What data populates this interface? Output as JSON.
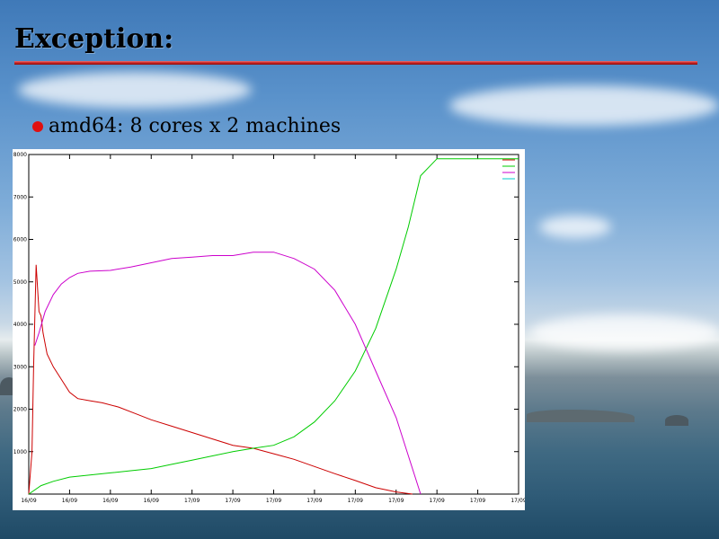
{
  "slide": {
    "title": "Exception:",
    "bullets": [
      {
        "text": "amd64: 8 cores x 2 machines"
      }
    ]
  },
  "colors": {
    "title_rule": "#c62020",
    "bullet": "#e01010",
    "series_red": "#cc0000",
    "series_green": "#00cc00",
    "series_magenta": "#cc00cc",
    "series_cyan": "#00cccc"
  },
  "chart_data": {
    "type": "line",
    "title": "",
    "xlabel": "",
    "ylabel": "",
    "xlim": [
      0,
      12
    ],
    "ylim": [
      0,
      8
    ],
    "grid": false,
    "legend": "top-right",
    "y_ticks": [
      "",
      "1000",
      "2000",
      "3000",
      "4000",
      "5000",
      "6000",
      "7000",
      "8000"
    ],
    "x_ticks": [
      "16/09",
      "16/09",
      "16/09",
      "16/09",
      "17/09",
      "17/09",
      "17/09",
      "17/09",
      "17/09",
      "17/09",
      "17/09",
      "17/09",
      "17/09"
    ],
    "series": [
      {
        "name": "",
        "color": "#cc0000",
        "x": [
          0.0,
          0.08,
          0.12,
          0.18,
          0.25,
          0.3,
          0.35,
          0.45,
          0.6,
          0.8,
          1.0,
          1.2,
          1.5,
          1.8,
          2.2,
          2.6,
          3.0,
          3.5,
          4.0,
          4.5,
          5.0,
          5.5,
          6.0,
          6.5,
          7.0,
          7.5,
          8.0,
          8.5,
          9.0,
          9.4
        ],
        "y": [
          0.0,
          1.0,
          3.0,
          5.4,
          4.3,
          4.2,
          3.8,
          3.3,
          3.0,
          2.7,
          2.4,
          2.25,
          2.2,
          2.15,
          2.05,
          1.9,
          1.75,
          1.6,
          1.45,
          1.3,
          1.15,
          1.08,
          0.95,
          0.82,
          0.65,
          0.48,
          0.32,
          0.15,
          0.05,
          0.0
        ]
      },
      {
        "name": "",
        "color": "#00cc00",
        "x": [
          0.0,
          0.3,
          0.6,
          1.0,
          1.5,
          2.0,
          2.5,
          3.0,
          3.5,
          4.0,
          4.5,
          5.0,
          5.5,
          6.0,
          6.5,
          7.0,
          7.5,
          8.0,
          8.5,
          9.0,
          9.3,
          9.6,
          10.0,
          12.0
        ],
        "y": [
          0.0,
          0.2,
          0.3,
          0.4,
          0.45,
          0.5,
          0.55,
          0.6,
          0.7,
          0.8,
          0.9,
          1.0,
          1.08,
          1.15,
          1.35,
          1.7,
          2.2,
          2.9,
          3.9,
          5.3,
          6.3,
          7.5,
          7.9,
          7.9
        ]
      },
      {
        "name": "",
        "color": "#cc00cc",
        "x": [
          0.15,
          0.25,
          0.4,
          0.6,
          0.8,
          1.0,
          1.2,
          1.5,
          2.0,
          2.5,
          3.0,
          3.5,
          4.0,
          4.5,
          5.0,
          5.5,
          6.0,
          6.5,
          7.0,
          7.5,
          8.0,
          8.5,
          9.0,
          9.3,
          9.6
        ],
        "y": [
          3.5,
          3.8,
          4.3,
          4.7,
          4.95,
          5.1,
          5.2,
          5.25,
          5.27,
          5.35,
          5.45,
          5.55,
          5.58,
          5.62,
          5.62,
          5.7,
          5.7,
          5.55,
          5.3,
          4.8,
          4.0,
          2.9,
          1.8,
          0.9,
          0.0
        ]
      },
      {
        "name": "",
        "color": "#00cccc",
        "x": [],
        "y": []
      }
    ]
  }
}
